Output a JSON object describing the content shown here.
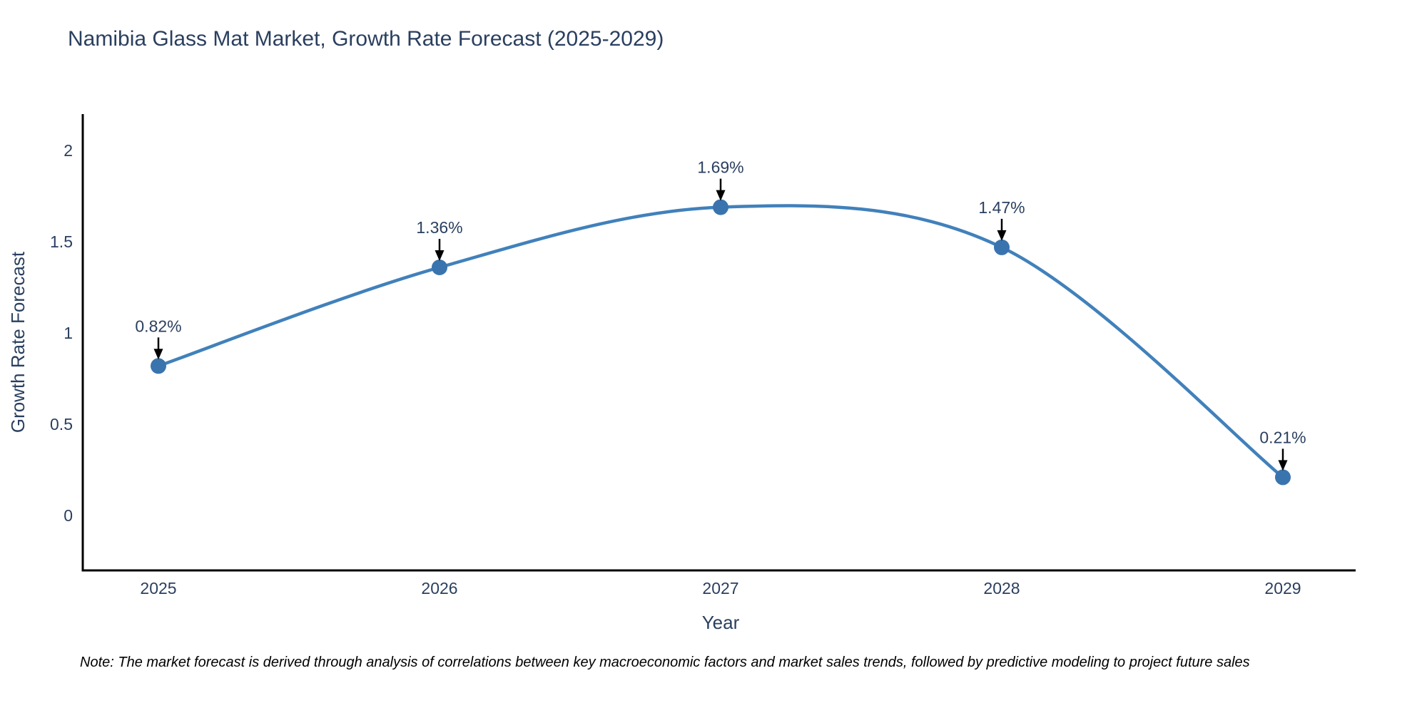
{
  "header": {
    "title": "Namibia Glass Mat Market, Growth Rate Forecast (2025-2029)"
  },
  "footer": {
    "note": "Note: The market forecast is derived through analysis of correlations between key macroeconomic factors and market sales trends, followed by predictive modeling to project future sales"
  },
  "chart_data": {
    "type": "line",
    "title": "Namibia Glass Mat Market, Growth Rate Forecast (2025-2029)",
    "xlabel": "Year",
    "ylabel": "Growth Rate Forecast",
    "categories": [
      "2025",
      "2026",
      "2027",
      "2028",
      "2029"
    ],
    "values": [
      0.82,
      1.36,
      1.69,
      1.47,
      0.21
    ],
    "point_labels": [
      "0.82%",
      "1.36%",
      "1.69%",
      "1.47%",
      "0.21%"
    ],
    "ytick_values": [
      0,
      0.5,
      1,
      1.5,
      2
    ],
    "ytick_labels": [
      "0",
      "0.5",
      "1",
      "1.5",
      "2"
    ],
    "ylim": [
      -0.3,
      2.2
    ],
    "grid": false,
    "legend_position": "none",
    "line_shape": "spline",
    "colors": {
      "line": "#4181bb",
      "marker": "#3a74ae",
      "axis": "#000000",
      "tick_text": "#2a3f5f",
      "title_text": "#2a3f5f",
      "annotation_text": "#2a3f5f",
      "annotation_arrow": "#000000"
    }
  }
}
